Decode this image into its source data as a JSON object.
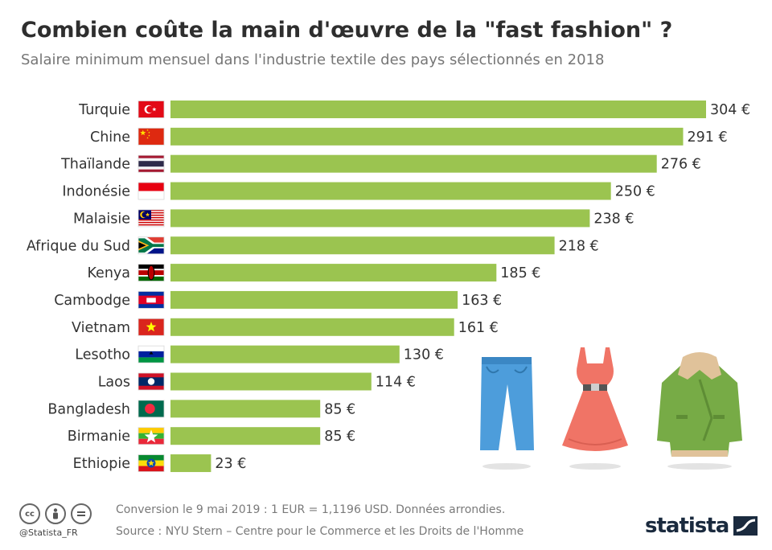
{
  "title": "Combien coûte la main d'œuvre de la \"fast fashion\" ?",
  "subtitle": "Salaire minimum mensuel dans l'industrie textile des pays sélectionnés en 2018",
  "colors": {
    "bar": "#9bc450",
    "text": "#333333",
    "muted": "#7a7a7a",
    "brand": "#1a2a3e"
  },
  "chart_data": {
    "type": "bar",
    "orientation": "horizontal",
    "categories": [
      "Turquie",
      "Chine",
      "Thaïlande",
      "Indonésie",
      "Malaisie",
      "Afrique du Sud",
      "Kenya",
      "Cambodge",
      "Vietnam",
      "Lesotho",
      "Laos",
      "Bangladesh",
      "Birmanie",
      "Ethiopie"
    ],
    "values": [
      304,
      291,
      276,
      250,
      238,
      218,
      185,
      163,
      161,
      130,
      114,
      85,
      85,
      23
    ],
    "value_labels": [
      "304 €",
      "291 €",
      "276 €",
      "250 €",
      "238 €",
      "218 €",
      "185 €",
      "163 €",
      "161 €",
      "130 €",
      "114 €",
      "85 €",
      "85 €",
      "23 €"
    ],
    "flags": [
      "turkey-flag",
      "china-flag",
      "thailand-flag",
      "indonesia-flag",
      "malaysia-flag",
      "south-africa-flag",
      "kenya-flag",
      "cambodia-flag",
      "vietnam-flag",
      "lesotho-flag",
      "laos-flag",
      "bangladesh-flag",
      "myanmar-flag",
      "ethiopia-flag"
    ],
    "xlim": [
      0,
      304
    ],
    "grid": false,
    "legend": "none"
  },
  "footer": {
    "handle": "@Statista_FR",
    "note1": "Conversion le 9 mai 2019 : 1 EUR = 1,1196 USD. Données arrondies.",
    "note2": "Source : NYU Stern – Centre pour le Commerce et les Droits de l'Homme",
    "brand": "statista",
    "license_icons": [
      "cc-icon",
      "by-icon",
      "nd-icon"
    ]
  },
  "illustration": [
    "jeans-icon",
    "dress-icon",
    "jacket-icon"
  ]
}
